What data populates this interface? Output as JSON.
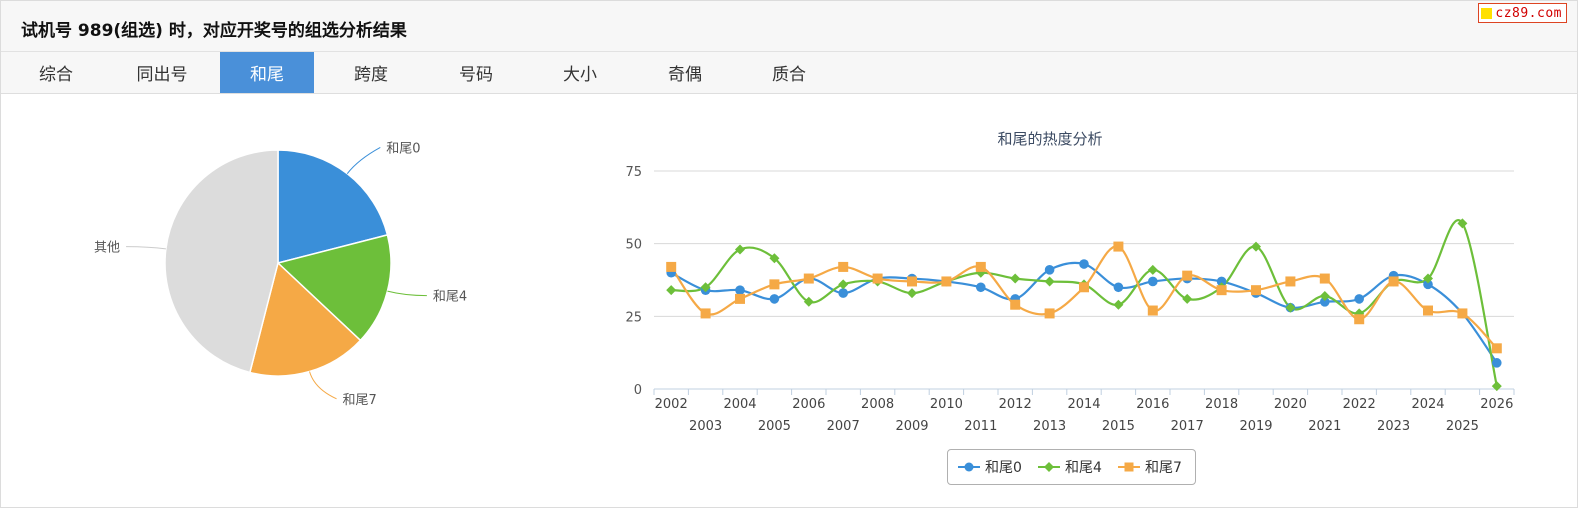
{
  "header": {
    "title": "试机号 989(组选) 时，对应开奖号的组选分析结果"
  },
  "watermark": {
    "text": "cz89.com"
  },
  "tabs": [
    {
      "label": "综合",
      "active": false
    },
    {
      "label": "同出号",
      "active": false
    },
    {
      "label": "和尾",
      "active": true
    },
    {
      "label": "跨度",
      "active": false
    },
    {
      "label": "号码",
      "active": false
    },
    {
      "label": "大小",
      "active": false
    },
    {
      "label": "奇偶",
      "active": false
    },
    {
      "label": "质合",
      "active": false
    }
  ],
  "colors": {
    "accent": "#4a90d9",
    "s0": "#3a8fd9",
    "s4": "#6dbf3a",
    "s7": "#f5a946",
    "other": "#dcdcdc"
  },
  "chart_data": [
    {
      "type": "pie",
      "labels": [
        "和尾0",
        "和尾4",
        "和尾7",
        "其他"
      ],
      "values": [
        21,
        16,
        17,
        46
      ]
    },
    {
      "type": "line",
      "title": "和尾的热度分析",
      "x": [
        "2002",
        "2003",
        "2004",
        "2005",
        "2006",
        "2007",
        "2008",
        "2009",
        "2010",
        "2011",
        "2012",
        "2013",
        "2014",
        "2015",
        "2016",
        "2017",
        "2018",
        "2019",
        "2020",
        "2021",
        "2022",
        "2023",
        "2024",
        "2025",
        "2026"
      ],
      "ylim": [
        0,
        75
      ],
      "yticks": [
        0,
        25,
        50,
        75
      ],
      "grid": true,
      "legend": "bottom-center",
      "series": [
        {
          "name": "和尾0",
          "marker": "circle",
          "values": [
            40,
            34,
            34,
            31,
            38,
            33,
            38,
            38,
            37,
            35,
            31,
            41,
            43,
            35,
            37,
            38,
            37,
            33,
            28,
            30,
            31,
            39,
            36,
            26,
            9
          ]
        },
        {
          "name": "和尾4",
          "marker": "diamond",
          "values": [
            34,
            35,
            48,
            45,
            30,
            36,
            37,
            33,
            37,
            40,
            38,
            37,
            36,
            29,
            41,
            31,
            35,
            49,
            28,
            32,
            26,
            37,
            38,
            57,
            1
          ]
        },
        {
          "name": "和尾7",
          "marker": "square",
          "values": [
            42,
            26,
            31,
            36,
            38,
            42,
            38,
            37,
            37,
            42,
            29,
            26,
            35,
            49,
            27,
            39,
            34,
            34,
            37,
            38,
            24,
            37,
            27,
            26,
            14
          ]
        }
      ]
    }
  ]
}
